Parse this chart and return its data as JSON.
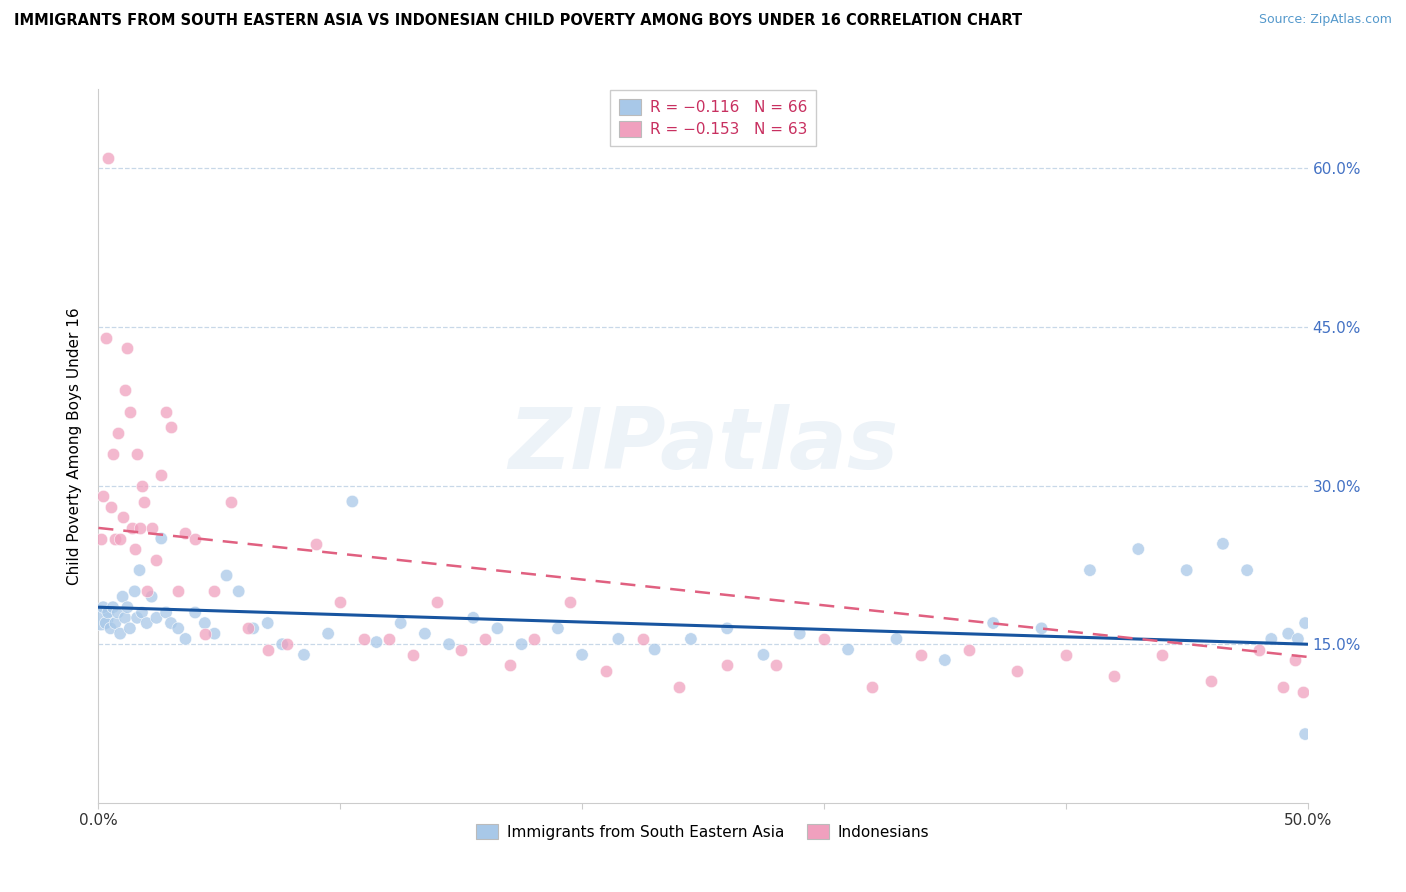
{
  "title": "IMMIGRANTS FROM SOUTH EASTERN ASIA VS INDONESIAN CHILD POVERTY AMONG BOYS UNDER 16 CORRELATION CHART",
  "source": "Source: ZipAtlas.com",
  "ylabel": "Child Poverty Among Boys Under 16",
  "yticks": [
    0.15,
    0.3,
    0.45,
    0.6
  ],
  "ytick_labels": [
    "15.0%",
    "30.0%",
    "45.0%",
    "60.0%"
  ],
  "xlim": [
    0.0,
    0.5
  ],
  "ylim": [
    0.0,
    0.675
  ],
  "blue_color": "#a8c8e8",
  "pink_color": "#f0a0be",
  "blue_line_color": "#1855a0",
  "pink_line_color": "#e06080",
  "legend_blue_r": "R = −0.116",
  "legend_blue_n": "N = 66",
  "legend_pink_r": "R = −0.153",
  "legend_pink_n": "N = 63",
  "watermark": "ZIPatlas",
  "legend_label_blue": "Immigrants from South Eastern Asia",
  "legend_label_pink": "Indonesians",
  "blue_scatter_x": [
    0.001,
    0.002,
    0.003,
    0.004,
    0.005,
    0.006,
    0.007,
    0.008,
    0.009,
    0.01,
    0.011,
    0.012,
    0.013,
    0.015,
    0.016,
    0.017,
    0.018,
    0.02,
    0.022,
    0.024,
    0.026,
    0.028,
    0.03,
    0.033,
    0.036,
    0.04,
    0.044,
    0.048,
    0.053,
    0.058,
    0.064,
    0.07,
    0.076,
    0.085,
    0.095,
    0.105,
    0.115,
    0.125,
    0.135,
    0.145,
    0.155,
    0.165,
    0.175,
    0.19,
    0.2,
    0.215,
    0.23,
    0.245,
    0.26,
    0.275,
    0.29,
    0.31,
    0.33,
    0.35,
    0.37,
    0.39,
    0.41,
    0.43,
    0.45,
    0.465,
    0.475,
    0.485,
    0.492,
    0.496,
    0.499,
    0.499
  ],
  "blue_scatter_y": [
    0.175,
    0.185,
    0.17,
    0.18,
    0.165,
    0.185,
    0.17,
    0.18,
    0.16,
    0.195,
    0.175,
    0.185,
    0.165,
    0.2,
    0.175,
    0.22,
    0.18,
    0.17,
    0.195,
    0.175,
    0.25,
    0.18,
    0.17,
    0.165,
    0.155,
    0.18,
    0.17,
    0.16,
    0.215,
    0.2,
    0.165,
    0.17,
    0.15,
    0.14,
    0.16,
    0.285,
    0.152,
    0.17,
    0.16,
    0.15,
    0.175,
    0.165,
    0.15,
    0.165,
    0.14,
    0.155,
    0.145,
    0.155,
    0.165,
    0.14,
    0.16,
    0.145,
    0.155,
    0.135,
    0.17,
    0.165,
    0.22,
    0.24,
    0.22,
    0.245,
    0.22,
    0.155,
    0.16,
    0.155,
    0.17,
    0.065
  ],
  "blue_scatter_sizes": [
    350,
    80,
    80,
    80,
    80,
    80,
    80,
    80,
    80,
    80,
    80,
    80,
    80,
    80,
    80,
    80,
    80,
    80,
    80,
    80,
    80,
    80,
    80,
    80,
    80,
    80,
    80,
    80,
    80,
    80,
    80,
    80,
    80,
    80,
    80,
    80,
    80,
    80,
    80,
    80,
    80,
    80,
    80,
    80,
    80,
    80,
    80,
    80,
    80,
    80,
    80,
    80,
    80,
    80,
    80,
    80,
    80,
    80,
    80,
    80,
    80,
    80,
    80,
    80,
    80,
    80
  ],
  "pink_scatter_x": [
    0.001,
    0.002,
    0.003,
    0.004,
    0.005,
    0.006,
    0.007,
    0.008,
    0.009,
    0.01,
    0.011,
    0.012,
    0.013,
    0.014,
    0.015,
    0.016,
    0.017,
    0.018,
    0.019,
    0.02,
    0.022,
    0.024,
    0.026,
    0.028,
    0.03,
    0.033,
    0.036,
    0.04,
    0.044,
    0.048,
    0.055,
    0.062,
    0.07,
    0.078,
    0.09,
    0.1,
    0.11,
    0.12,
    0.13,
    0.14,
    0.15,
    0.16,
    0.17,
    0.18,
    0.195,
    0.21,
    0.225,
    0.24,
    0.26,
    0.28,
    0.3,
    0.32,
    0.34,
    0.36,
    0.38,
    0.4,
    0.42,
    0.44,
    0.46,
    0.48,
    0.49,
    0.495,
    0.498
  ],
  "pink_scatter_y": [
    0.25,
    0.29,
    0.44,
    0.61,
    0.28,
    0.33,
    0.25,
    0.35,
    0.25,
    0.27,
    0.39,
    0.43,
    0.37,
    0.26,
    0.24,
    0.33,
    0.26,
    0.3,
    0.285,
    0.2,
    0.26,
    0.23,
    0.31,
    0.37,
    0.355,
    0.2,
    0.255,
    0.25,
    0.16,
    0.2,
    0.285,
    0.165,
    0.145,
    0.15,
    0.245,
    0.19,
    0.155,
    0.155,
    0.14,
    0.19,
    0.145,
    0.155,
    0.13,
    0.155,
    0.19,
    0.125,
    0.155,
    0.11,
    0.13,
    0.13,
    0.155,
    0.11,
    0.14,
    0.145,
    0.125,
    0.14,
    0.12,
    0.14,
    0.115,
    0.145,
    0.11,
    0.135,
    0.105
  ],
  "blue_trend_x": [
    0.0,
    0.5
  ],
  "blue_trend_y": [
    0.185,
    0.15
  ],
  "pink_trend_x": [
    0.0,
    0.5
  ],
  "pink_trend_y": [
    0.26,
    0.138
  ]
}
